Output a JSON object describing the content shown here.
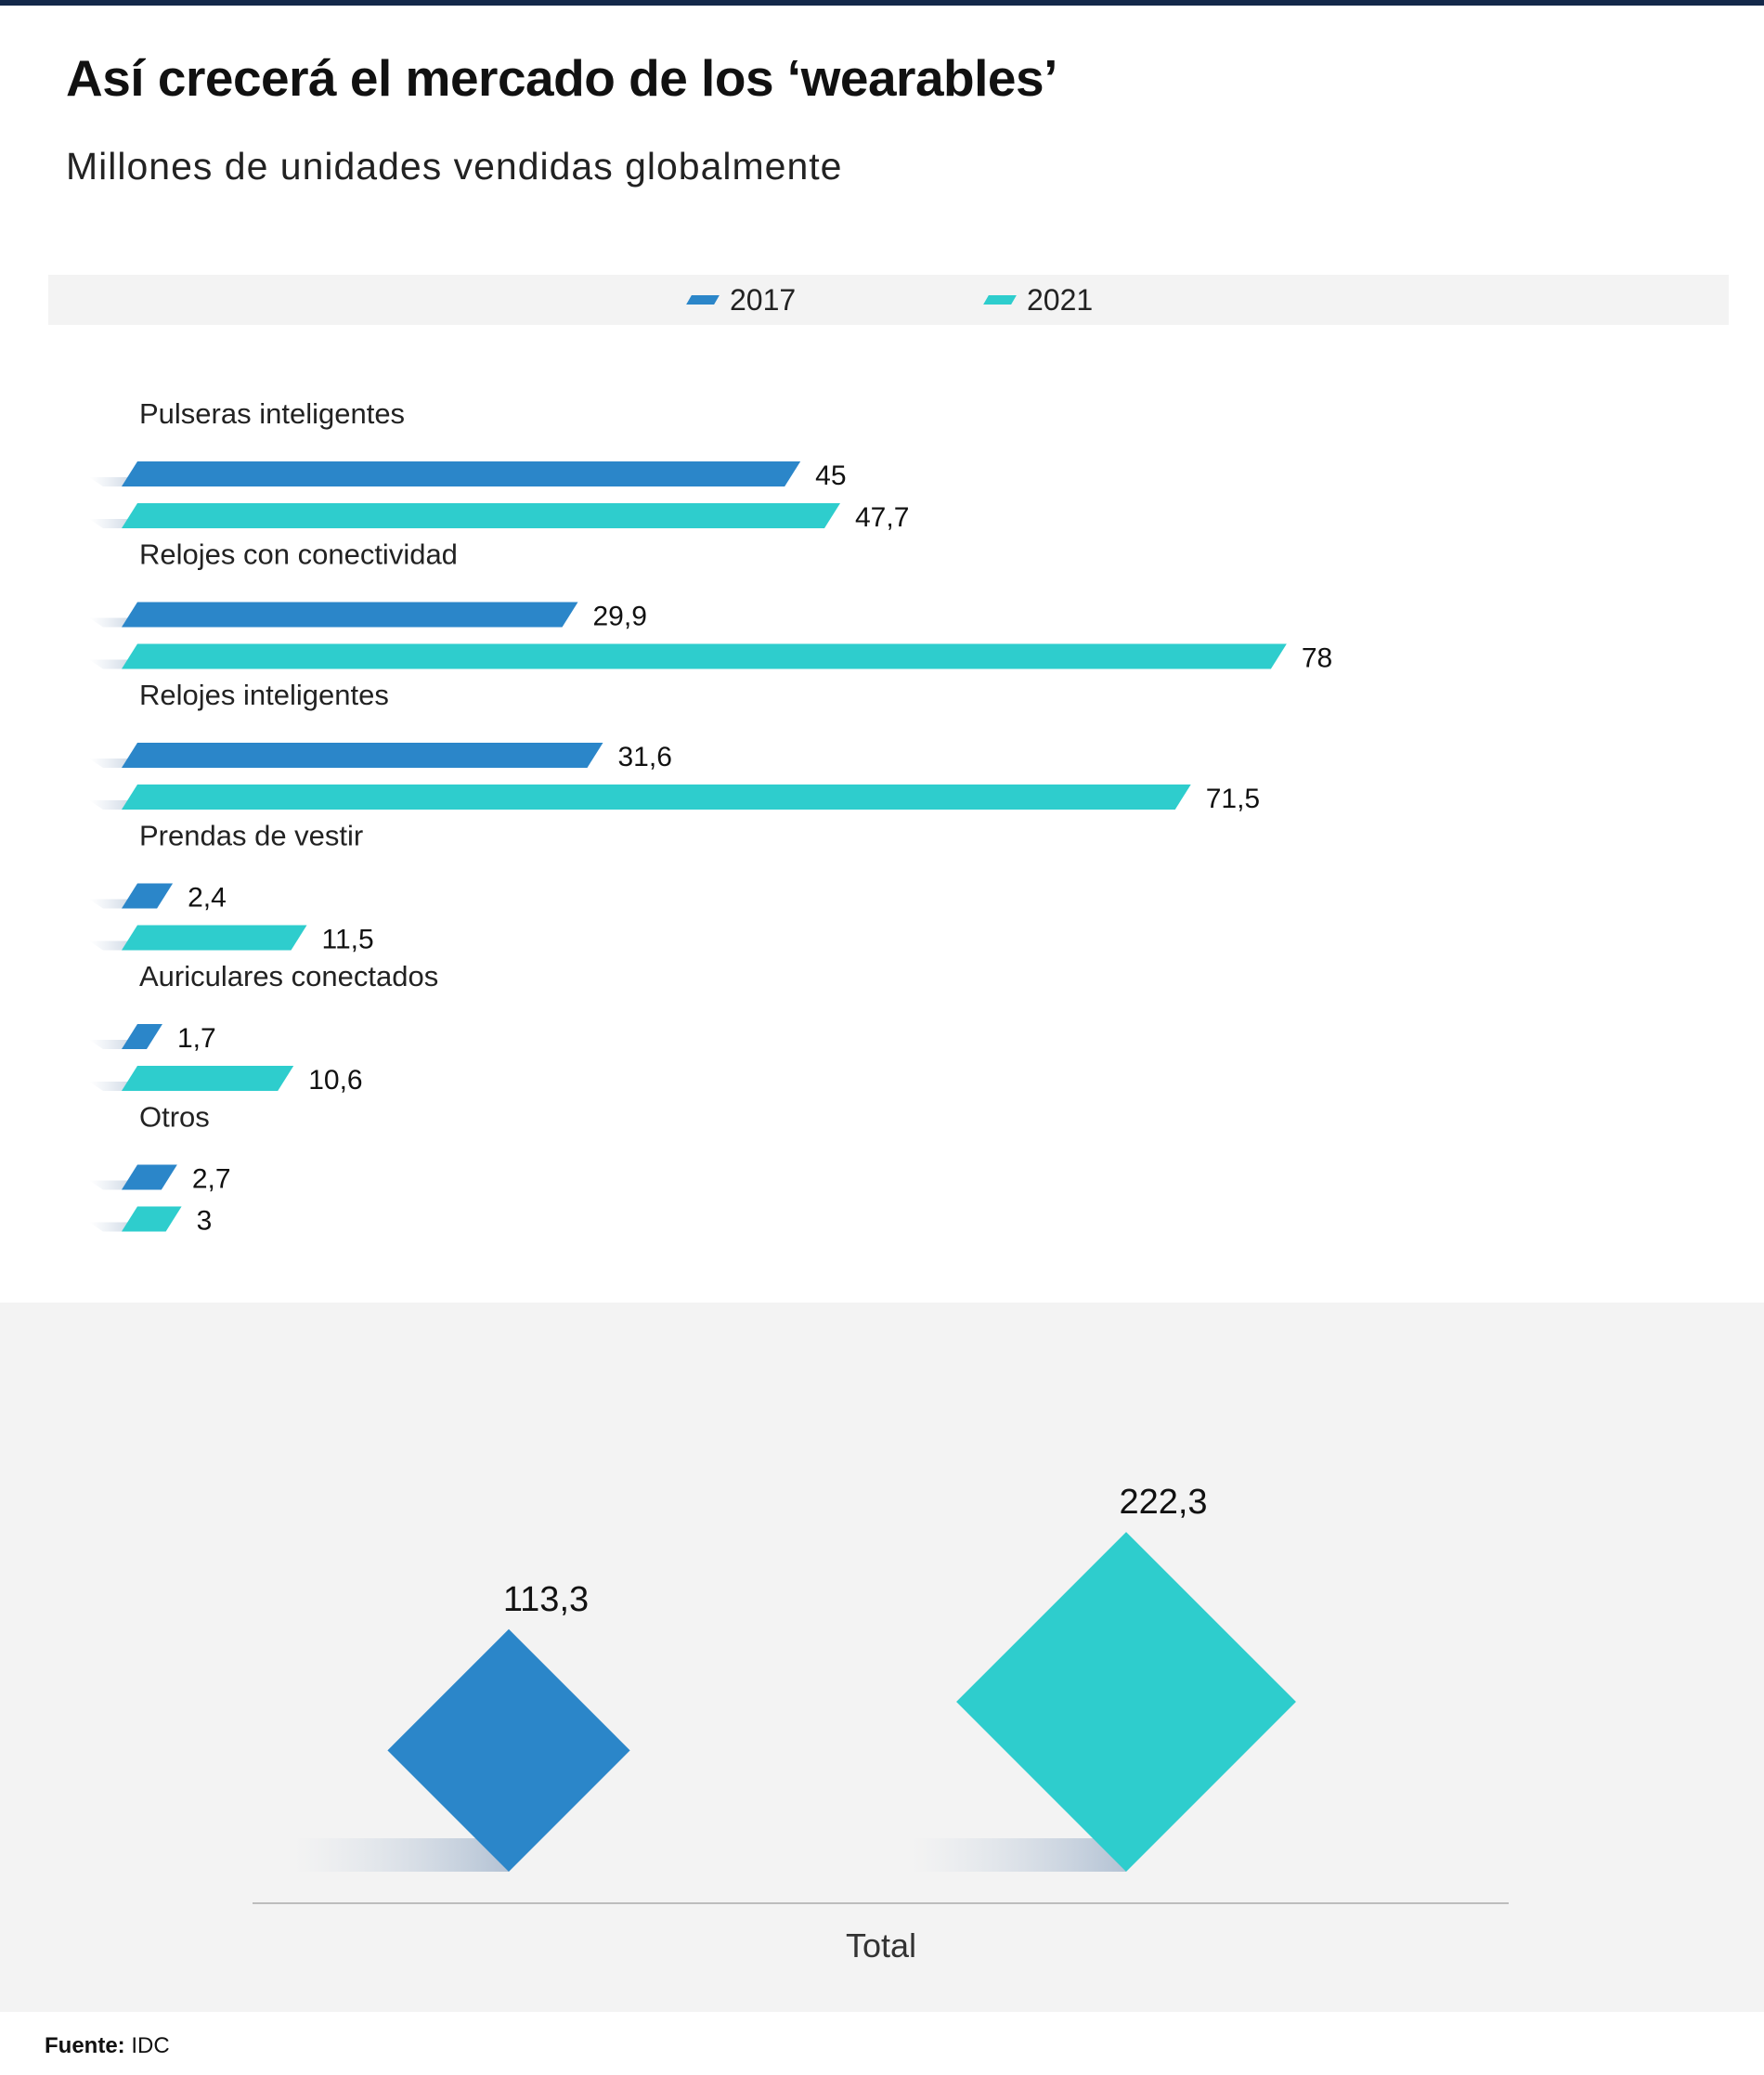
{
  "title": "Así crecerá el mercado de los ‘wearables’",
  "subtitle": "Millones de unidades vendidas globalmente",
  "colors": {
    "top_rule": "#13284a",
    "series_2017": "#2b86c9",
    "series_2021": "#2ecdcd",
    "panel_bg": "#f3f3f3"
  },
  "legend": [
    {
      "label": "2017",
      "color": "#2b86c9"
    },
    {
      "label": "2021",
      "color": "#2ecdcd"
    }
  ],
  "source": {
    "label": "Fuente:",
    "value": "IDC"
  },
  "chart_data": [
    {
      "type": "bar",
      "orientation": "horizontal",
      "categories": [
        "Pulseras inteligentes",
        "Relojes con conectividad",
        "Relojes inteligentes",
        "Prendas de vestir",
        "Auriculares conectados",
        "Otros"
      ],
      "series": [
        {
          "name": "2017",
          "values": [
            45,
            29.9,
            31.6,
            2.4,
            1.7,
            2.7
          ],
          "labels": [
            "45",
            "29,9",
            "31,6",
            "2,4",
            "1,7",
            "2,7"
          ]
        },
        {
          "name": "2021",
          "values": [
            47.7,
            78,
            71.5,
            11.5,
            10.6,
            3
          ],
          "labels": [
            "47,7",
            "78",
            "71,5",
            "11,5",
            "10,6",
            "3"
          ]
        }
      ],
      "legend_position": "top-center"
    },
    {
      "type": "area",
      "shape": "diamond",
      "categories": [
        "2017",
        "2021"
      ],
      "values": [
        113.3,
        222.3
      ],
      "labels": [
        "113,3",
        "222,3"
      ],
      "xlabel": "Total"
    }
  ]
}
